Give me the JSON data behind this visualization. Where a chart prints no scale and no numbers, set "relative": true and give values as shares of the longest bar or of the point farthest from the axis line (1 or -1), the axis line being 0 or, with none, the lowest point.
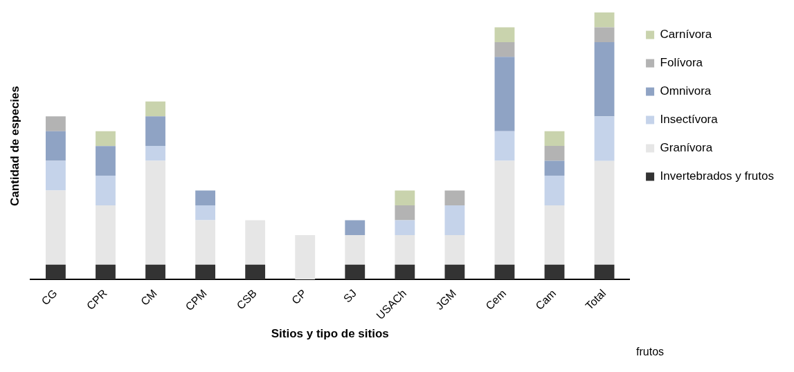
{
  "chart_data": {
    "type": "bar",
    "stacked": true,
    "relative": true,
    "xlabel": "Sitios y tipo de sitios",
    "ylabel": "Cantidad de especies",
    "legend": "right",
    "annotations": [
      "frutos"
    ],
    "categories": [
      "CG",
      "CPR",
      "CM",
      "CPM",
      "CSB",
      "CP",
      "SJ",
      "USACh",
      "JGM",
      "Cem",
      "Cam",
      "Total"
    ],
    "series": [
      {
        "name": "Invertebrados y frutos",
        "color": "#333333",
        "values": [
          0.0556,
          0.0556,
          0.0556,
          0.0556,
          0.0556,
          0,
          0.0556,
          0.0556,
          0.0556,
          0.0556,
          0.0556,
          0.0555
        ]
      },
      {
        "name": "Granívora",
        "color": "#e6e6e6",
        "values": [
          0.2778,
          0.2222,
          0.3889,
          0.1667,
          0.1667,
          0.1667,
          0.1111,
          0.1111,
          0.1111,
          0.3889,
          0.2222,
          0.3889
        ]
      },
      {
        "name": "Insectívora",
        "color": "#c5d3ea",
        "values": [
          0.1111,
          0.1111,
          0.0556,
          0.0556,
          0,
          0,
          0,
          0.0556,
          0.1111,
          0.1111,
          0.1111,
          0.1667
        ]
      },
      {
        "name": "Omnivora",
        "color": "#8fa3c4",
        "values": [
          0.1111,
          0.1111,
          0.1111,
          0.0556,
          0,
          0,
          0.0556,
          0,
          0,
          0.2778,
          0.0556,
          0.2778
        ]
      },
      {
        "name": "Folívora",
        "color": "#b3b3b3",
        "values": [
          0.0556,
          0,
          0,
          0,
          0,
          0,
          0,
          0.0556,
          0.0556,
          0.0556,
          0.0556,
          0.0556
        ]
      },
      {
        "name": "Carnívora",
        "color": "#c9d3ad",
        "values": [
          0,
          0.0556,
          0.0556,
          0,
          0,
          0,
          0,
          0.0556,
          0,
          0.0556,
          0.0556,
          0.0555
        ]
      }
    ]
  }
}
